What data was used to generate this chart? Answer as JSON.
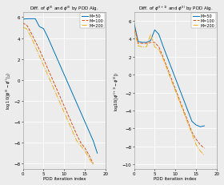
{
  "title1": "Diff. of $\\phi^{(l)}$ and $\\phi^{(l)}$ by PDD Alg.",
  "title2": "Diff. of $\\phi^{(l+1)}$ and $\\phi^{(l)}$ by PDD Alg.",
  "ylabel1": "log10($|\\phi^{(l)}-\\phi^{(l)}|_2$)",
  "ylabel2": "log10($|\\phi^{(l+1)}-\\phi^{(l)}|$)",
  "xlabel": "PDD iteration index",
  "legend": [
    "M=50",
    "M=100",
    "M=200"
  ],
  "colors": [
    "#0072BD",
    "#D95319",
    "#EDB120"
  ],
  "linestyles": [
    "-",
    "--",
    "-."
  ],
  "plot1": {
    "M50_x": [
      0,
      1,
      2,
      3,
      4,
      5,
      6,
      7,
      8,
      9,
      10,
      11,
      12,
      13,
      14,
      15,
      16,
      17,
      18
    ],
    "M50_y": [
      5.8,
      5.85,
      5.85,
      5.85,
      5.1,
      4.9,
      4.1,
      3.2,
      2.3,
      1.4,
      0.5,
      -0.4,
      -1.3,
      -2.2,
      -3.1,
      -4.0,
      -4.9,
      -5.8,
      -7.0
    ],
    "M100_x": [
      0,
      1,
      2,
      3,
      4,
      5,
      6,
      7,
      8,
      9,
      10,
      11,
      12,
      13,
      14,
      15,
      16,
      17
    ],
    "M100_y": [
      5.45,
      5.2,
      4.5,
      3.7,
      2.9,
      2.0,
      1.1,
      0.2,
      -0.7,
      -1.6,
      -2.5,
      -3.4,
      -4.3,
      -5.2,
      -6.0,
      -6.5,
      -7.2,
      -8.0
    ],
    "M200_x": [
      0,
      1,
      2,
      3,
      4,
      5,
      6,
      7,
      8,
      9,
      10,
      11,
      12,
      13,
      14,
      15,
      16,
      17
    ],
    "M200_y": [
      5.05,
      4.85,
      4.1,
      3.2,
      2.3,
      1.4,
      0.5,
      -0.4,
      -1.3,
      -2.2,
      -3.1,
      -4.0,
      -4.9,
      -5.8,
      -6.3,
      -6.8,
      -7.5,
      -8.1
    ],
    "ylim": [
      -8.5,
      6.5
    ],
    "yticks": [
      -8,
      -6,
      -4,
      -2,
      0,
      2,
      4,
      6
    ],
    "xlim": [
      0,
      20
    ],
    "xticks": [
      0,
      5,
      10,
      15,
      20
    ]
  },
  "plot2": {
    "M50_x": [
      0,
      1,
      2,
      3,
      4,
      5,
      6,
      7,
      8,
      9,
      10,
      11,
      12,
      13,
      14,
      15,
      16,
      17
    ],
    "M50_y": [
      5.8,
      3.7,
      3.6,
      3.6,
      3.8,
      5.0,
      4.5,
      3.2,
      2.0,
      0.8,
      -0.4,
      -1.6,
      -2.8,
      -4.0,
      -5.2,
      -5.6,
      -5.8,
      -5.7
    ],
    "M100_x": [
      0,
      1,
      2,
      3,
      4,
      5,
      6,
      7,
      8,
      9,
      10,
      11,
      12,
      13,
      14,
      15,
      16,
      17
    ],
    "M100_y": [
      5.5,
      3.5,
      3.5,
      3.5,
      3.6,
      3.6,
      3.1,
      2.0,
      0.8,
      -0.4,
      -1.6,
      -2.8,
      -4.0,
      -5.2,
      -6.4,
      -7.2,
      -7.8,
      -8.2
    ],
    "M200_x": [
      0,
      1,
      2,
      3,
      4,
      5,
      6,
      7,
      8,
      9,
      10,
      11,
      12,
      13,
      14,
      15,
      16,
      17
    ],
    "M200_y": [
      5.1,
      3.2,
      3.1,
      3.1,
      4.5,
      3.1,
      2.8,
      1.8,
      0.6,
      -0.6,
      -1.8,
      -3.0,
      -4.2,
      -5.4,
      -6.6,
      -7.8,
      -8.5,
      -9.0
    ],
    "ylim": [
      -10.5,
      7.0
    ],
    "yticks": [
      -10,
      -8,
      -6,
      -4,
      -2,
      0,
      2,
      4,
      6
    ],
    "xlim": [
      0,
      20
    ],
    "xticks": [
      0,
      5,
      10,
      15,
      20
    ]
  },
  "bg_color": "#ececec",
  "grid_color": "white",
  "figsize": [
    2.8,
    2.32
  ],
  "dpi": 100
}
